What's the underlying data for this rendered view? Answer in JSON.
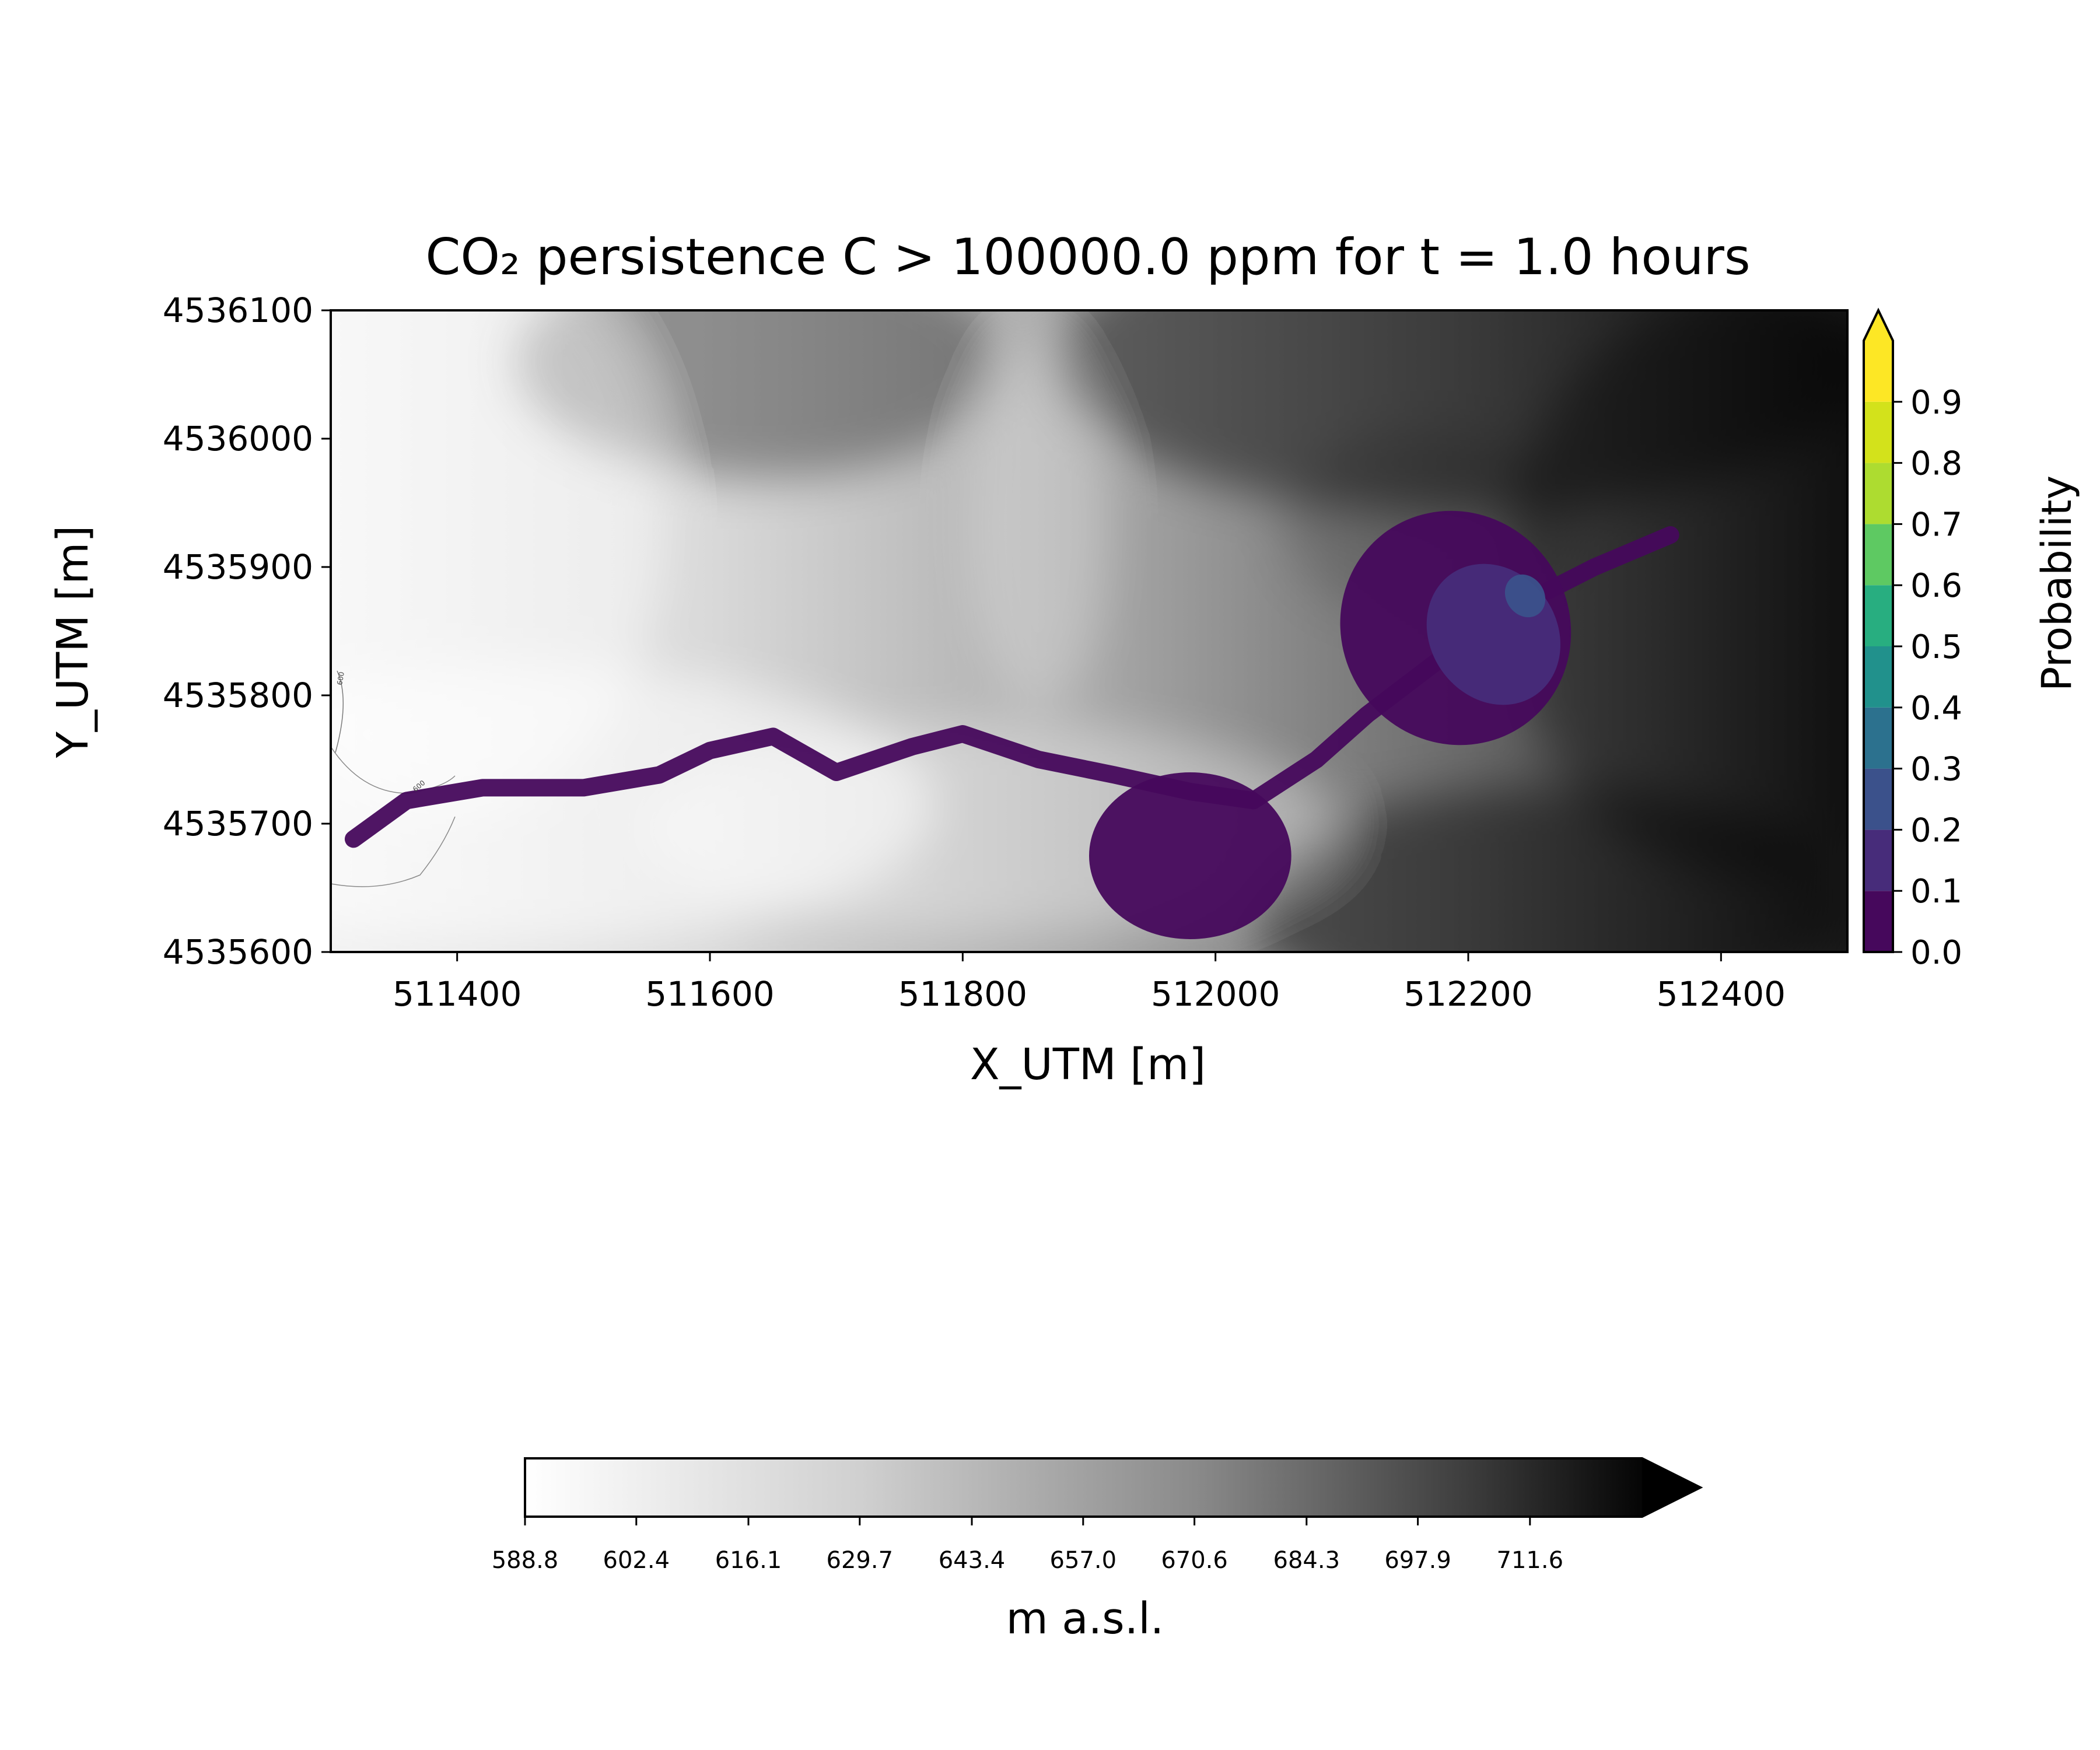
{
  "chart_data": {
    "type": "heatmap",
    "title": "CO₂ persistence C > 100000.0 ppm for t = 1.0 hours",
    "xlabel": "X_UTM [m]",
    "ylabel": "Y_UTM [m]",
    "xlim": [
      511300,
      512500
    ],
    "ylim": [
      4535600,
      4536100
    ],
    "xticks": [
      "511400",
      "511600",
      "511800",
      "512000",
      "512200",
      "512400"
    ],
    "xtick_values": [
      511400,
      511600,
      511800,
      512000,
      512200,
      512400
    ],
    "yticks": [
      "4535600",
      "4535700",
      "4535800",
      "4535900",
      "4536000",
      "4536100"
    ],
    "ytick_values": [
      4535600,
      4535700,
      4535800,
      4535900,
      4536000,
      4536100
    ],
    "contour_labels": [
      "600",
      "600"
    ],
    "probability_colorbar": {
      "label": "Probability",
      "ticks": [
        "0.0",
        "0.1",
        "0.2",
        "0.3",
        "0.4",
        "0.5",
        "0.6",
        "0.7",
        "0.8",
        "0.9"
      ],
      "levels": [
        0.0,
        0.1,
        0.2,
        0.3,
        0.4,
        0.5,
        0.6,
        0.7,
        0.8,
        0.9,
        1.0
      ],
      "colors": [
        "#46085c",
        "#472c7a",
        "#3b518b",
        "#2c718e",
        "#21918c",
        "#28ae80",
        "#5ec962",
        "#addc30",
        "#d3e21b",
        "#fde725"
      ],
      "extend": "max"
    },
    "elevation_colorbar": {
      "label": "m a.s.l.",
      "ticks": [
        "588.8",
        "602.4",
        "616.1",
        "629.7",
        "643.4",
        "657.0",
        "670.6",
        "684.3",
        "697.9",
        "711.6"
      ],
      "tick_values": [
        588.8,
        602.4,
        616.1,
        629.7,
        643.4,
        657.0,
        670.6,
        684.3,
        697.9,
        711.6
      ],
      "range": [
        588.8,
        725.3
      ],
      "colormap": "Greys",
      "extend": "max"
    },
    "plume_path": [
      [
        511318,
        4535688
      ],
      [
        511360,
        4535718
      ],
      [
        511420,
        4535728
      ],
      [
        511500,
        4535728
      ],
      [
        511560,
        4535738
      ],
      [
        511600,
        4535757
      ],
      [
        511650,
        4535768
      ],
      [
        511700,
        4535740
      ],
      [
        511760,
        4535760
      ],
      [
        511800,
        4535770
      ],
      [
        511860,
        4535750
      ],
      [
        511920,
        4535738
      ],
      [
        511980,
        4535725
      ],
      [
        512030,
        4535718
      ],
      [
        512080,
        4535750
      ],
      [
        512120,
        4535785
      ],
      [
        512180,
        4535830
      ],
      [
        512240,
        4535870
      ],
      [
        512300,
        4535900
      ],
      [
        512360,
        4535925
      ]
    ],
    "plume_regions": [
      {
        "probability": 0.05,
        "note_free": true,
        "x": [
          511900,
          512060
        ],
        "y": [
          4535610,
          4535740
        ]
      },
      {
        "probability": 0.05,
        "x": [
          512100,
          512280
        ],
        "y": [
          4535760,
          4535945
        ]
      },
      {
        "probability": 0.15,
        "x": [
          512170,
          512270
        ],
        "y": [
          4535790,
          4535905
        ]
      },
      {
        "probability": 0.25,
        "x": [
          512230,
          512260
        ],
        "y": [
          4535860,
          4535895
        ]
      }
    ]
  }
}
